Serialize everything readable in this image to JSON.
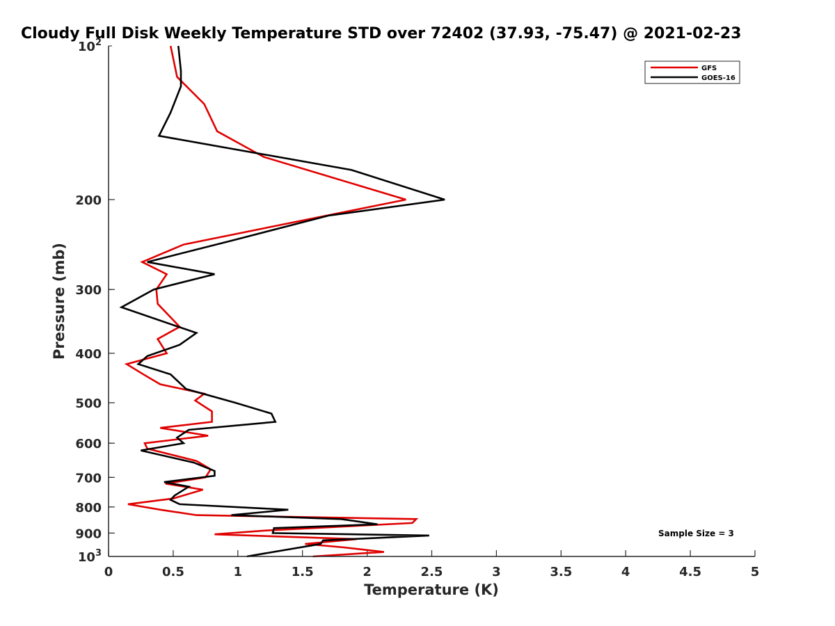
{
  "chart_data": {
    "type": "line",
    "title": "Cloudy Full Disk Weekly Temperature STD over 72402 (37.93, -75.47) @ 2021-02-23",
    "xlabel": "Temperature (K)",
    "ylabel": "Pressure (mb)",
    "xlim": [
      0,
      5
    ],
    "ylim": [
      100,
      1000
    ],
    "y_scale": "log",
    "y_reversed": true,
    "grid": false,
    "legend_position": "top-right",
    "annotation": "Sample Size = 3",
    "x_ticks": [
      "0",
      "0.5",
      "1",
      "1.5",
      "2",
      "2.5",
      "3",
      "3.5",
      "4",
      "4.5",
      "5"
    ],
    "y_ticks": [
      {
        "value": 200,
        "label": "200"
      },
      {
        "value": 300,
        "label": "300"
      },
      {
        "value": 400,
        "label": "400"
      },
      {
        "value": 500,
        "label": "500"
      },
      {
        "value": 600,
        "label": "600"
      },
      {
        "value": 700,
        "label": "700"
      },
      {
        "value": 800,
        "label": "800"
      },
      {
        "value": 900,
        "label": "900"
      }
    ],
    "y_tick_bottom": {
      "base": "10",
      "exp": "3",
      "value": 1000
    },
    "y_tick_top": {
      "base": "10",
      "exp": "2",
      "value": 100
    },
    "series": [
      {
        "name": "GFS",
        "color": "#e00000",
        "points": [
          [
            0.48,
            100
          ],
          [
            0.53,
            115
          ],
          [
            0.74,
            130
          ],
          [
            0.84,
            147
          ],
          [
            1.2,
            165
          ],
          [
            2.3,
            200
          ],
          [
            1.3,
            225
          ],
          [
            0.58,
            245
          ],
          [
            0.26,
            265
          ],
          [
            0.45,
            280
          ],
          [
            0.37,
            300
          ],
          [
            0.38,
            320
          ],
          [
            0.55,
            355
          ],
          [
            0.38,
            375
          ],
          [
            0.45,
            400
          ],
          [
            0.14,
            420
          ],
          [
            0.27,
            440
          ],
          [
            0.4,
            460
          ],
          [
            0.74,
            480
          ],
          [
            0.67,
            495
          ],
          [
            0.8,
            520
          ],
          [
            0.8,
            545
          ],
          [
            0.4,
            560
          ],
          [
            0.77,
            580
          ],
          [
            0.28,
            600
          ],
          [
            0.3,
            615
          ],
          [
            0.68,
            650
          ],
          [
            0.79,
            675
          ],
          [
            0.75,
            700
          ],
          [
            0.44,
            720
          ],
          [
            0.73,
            740
          ],
          [
            0.5,
            770
          ],
          [
            0.15,
            790
          ],
          [
            0.4,
            810
          ],
          [
            0.68,
            830
          ],
          [
            2.38,
            845
          ],
          [
            2.35,
            860
          ],
          [
            1.2,
            890
          ],
          [
            0.82,
            905
          ],
          [
            1.92,
            925
          ],
          [
            1.52,
            945
          ],
          [
            1.82,
            960
          ],
          [
            2.13,
            980
          ],
          [
            1.58,
            1000
          ]
        ]
      },
      {
        "name": "GOES-16",
        "color": "#000000",
        "points": [
          [
            0.54,
            100
          ],
          [
            0.56,
            112
          ],
          [
            0.56,
            120
          ],
          [
            0.48,
            135
          ],
          [
            0.39,
            150
          ],
          [
            1.88,
            175
          ],
          [
            2.6,
            200
          ],
          [
            1.7,
            215
          ],
          [
            0.97,
            240
          ],
          [
            0.3,
            265
          ],
          [
            0.82,
            280
          ],
          [
            0.35,
            300
          ],
          [
            0.1,
            325
          ],
          [
            0.68,
            365
          ],
          [
            0.55,
            385
          ],
          [
            0.3,
            405
          ],
          [
            0.23,
            420
          ],
          [
            0.48,
            440
          ],
          [
            0.6,
            470
          ],
          [
            0.98,
            500
          ],
          [
            1.26,
            525
          ],
          [
            1.29,
            545
          ],
          [
            0.62,
            565
          ],
          [
            0.53,
            585
          ],
          [
            0.58,
            600
          ],
          [
            0.25,
            620
          ],
          [
            0.66,
            655
          ],
          [
            0.82,
            680
          ],
          [
            0.82,
            695
          ],
          [
            0.43,
            715
          ],
          [
            0.62,
            730
          ],
          [
            0.51,
            760
          ],
          [
            0.48,
            775
          ],
          [
            0.55,
            790
          ],
          [
            1.39,
            810
          ],
          [
            0.95,
            830
          ],
          [
            1.8,
            845
          ],
          [
            2.08,
            865
          ],
          [
            1.28,
            880
          ],
          [
            1.27,
            900
          ],
          [
            2.48,
            910
          ],
          [
            1.66,
            930
          ],
          [
            1.64,
            945
          ],
          [
            1.07,
            1000
          ]
        ]
      }
    ]
  }
}
